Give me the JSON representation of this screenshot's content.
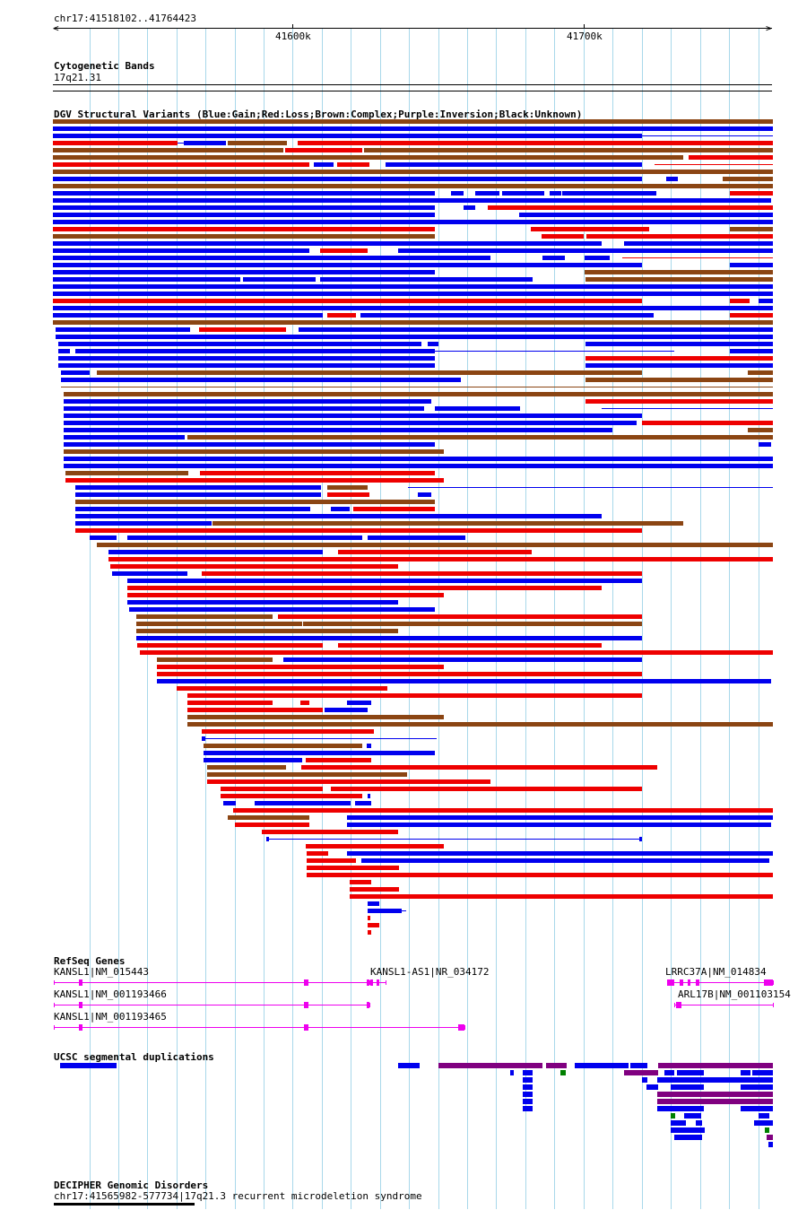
{
  "location": {
    "coords": "chr17:41518102..41764423"
  },
  "ruler": {
    "ticks": [
      "41600k",
      "41700k"
    ]
  },
  "tracks": {
    "cytoband": {
      "title": "Cytogenetic Bands",
      "band": "17q21.31"
    },
    "dgv": {
      "title": "DGV Structural Variants (Blue:Gain;Red:Loss;Brown:Complex;Purple:Inversion;Black:Unknown)"
    },
    "refseq": {
      "title": "RefSeq Genes",
      "labels": [
        "KANSL1|NM_015443",
        "KANSL1-AS1|NR_034172",
        "LRRC37A|NM_014834",
        "KANSL1|NM_001193466",
        "ARL17B|NM_001103154",
        "KANSL1|NM_001193465"
      ]
    },
    "segdups": {
      "title": "UCSC segmental duplications"
    },
    "decipher": {
      "title": "DECIPHER Genomic Disorders",
      "feature": "chr17:41565982-577734|17q21.3 recurrent microdeletion syndrome"
    }
  },
  "colors": {
    "gain": "#0000ee",
    "loss": "#ee0000",
    "complex": "#8b4513",
    "inversion": "#800080",
    "refseq": "#ee00ee",
    "segdup_green": "#008000",
    "grid": "#a8d8ea"
  }
}
